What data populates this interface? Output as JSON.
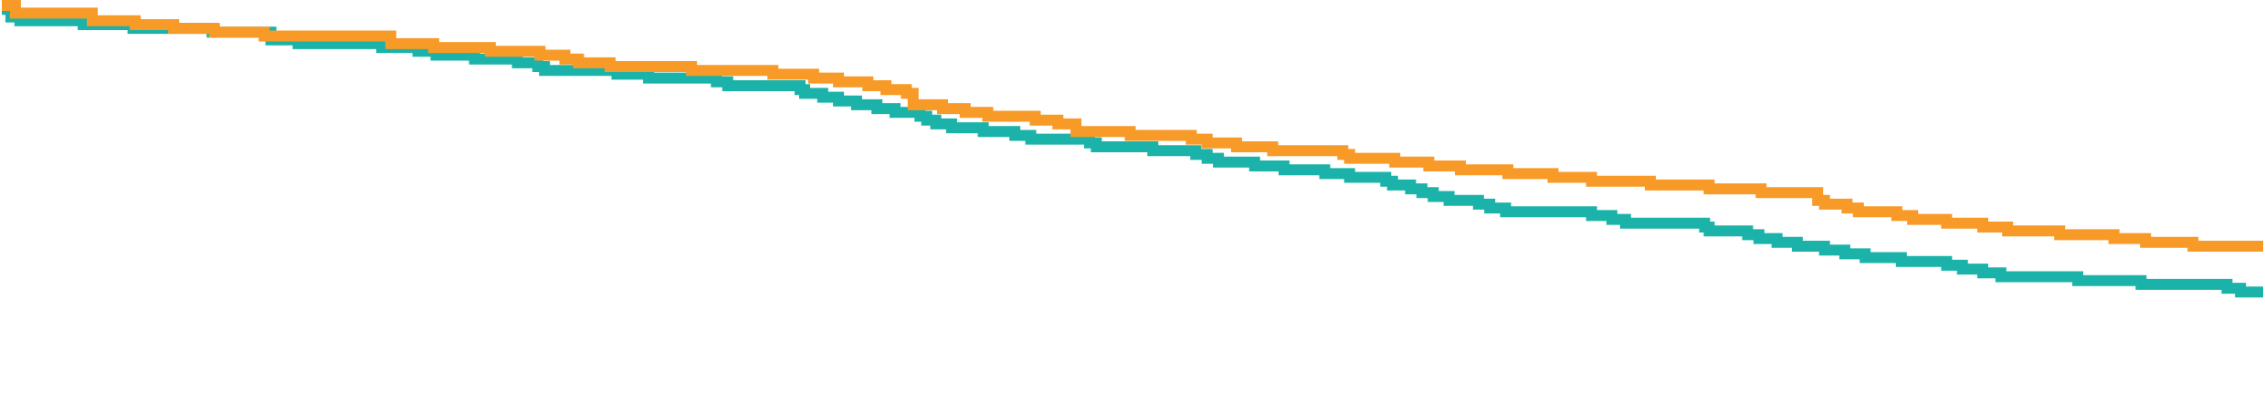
{
  "chart_data": {
    "type": "line",
    "step": true,
    "title": "",
    "xlabel": "",
    "ylabel": "",
    "xlim": [
      0,
      100
    ],
    "ylim": [
      0,
      100
    ],
    "grid": false,
    "legend": "none",
    "series": [
      {
        "color": "#1bb3a9",
        "values": [
          [
            0,
            99
          ],
          [
            0.4,
            97
          ],
          [
            0.8,
            96
          ],
          [
            1.8,
            96
          ],
          [
            3.6,
            95
          ],
          [
            4.1,
            95
          ],
          [
            5.8,
            94
          ],
          [
            7.4,
            94
          ],
          [
            9.3,
            93
          ],
          [
            11.2,
            93
          ],
          [
            11.9,
            91
          ],
          [
            13.1,
            90
          ],
          [
            16.8,
            89
          ],
          [
            18.4,
            88
          ],
          [
            19.2,
            87
          ],
          [
            20.9,
            86
          ],
          [
            22.8,
            85
          ],
          [
            23.7,
            84
          ],
          [
            24.0,
            83
          ],
          [
            25.7,
            83
          ],
          [
            27.2,
            82
          ],
          [
            27.9,
            82
          ],
          [
            28.6,
            81
          ],
          [
            30.3,
            81
          ],
          [
            31.6,
            80
          ],
          [
            32.1,
            79
          ],
          [
            33.6,
            79
          ],
          [
            35.3,
            78
          ],
          [
            35.5,
            77
          ],
          [
            36.3,
            76
          ],
          [
            37.0,
            75
          ],
          [
            37.8,
            74
          ],
          [
            38.7,
            73
          ],
          [
            39.5,
            72
          ],
          [
            40.6,
            71
          ],
          [
            40.9,
            70
          ],
          [
            41.3,
            69
          ],
          [
            42.0,
            68
          ],
          [
            43.4,
            67
          ],
          [
            44.8,
            66
          ],
          [
            45.5,
            65
          ],
          [
            48.1,
            64
          ],
          [
            48.4,
            63
          ],
          [
            50.9,
            62
          ],
          [
            52.8,
            61
          ],
          [
            53.3,
            60
          ],
          [
            53.8,
            59
          ],
          [
            55.4,
            58
          ],
          [
            56.7,
            57
          ],
          [
            58.5,
            56
          ],
          [
            59.6,
            55
          ],
          [
            61.2,
            54
          ],
          [
            61.5,
            53
          ],
          [
            62.3,
            52
          ],
          [
            62.8,
            51
          ],
          [
            63.3,
            50
          ],
          [
            64.0,
            49
          ],
          [
            65.3,
            48
          ],
          [
            65.8,
            47
          ],
          [
            66.5,
            46
          ],
          [
            70.3,
            45
          ],
          [
            71.2,
            44
          ],
          [
            71.8,
            43
          ],
          [
            75.3,
            42
          ],
          [
            75.5,
            41
          ],
          [
            77.2,
            40
          ],
          [
            77.7,
            39
          ],
          [
            78.5,
            38
          ],
          [
            79.4,
            37
          ],
          [
            80.6,
            36
          ],
          [
            81.5,
            35
          ],
          [
            82.4,
            34
          ],
          [
            84.0,
            33
          ],
          [
            86.0,
            32
          ],
          [
            86.7,
            31
          ],
          [
            87.6,
            30
          ],
          [
            88.4,
            29
          ],
          [
            91.8,
            28
          ],
          [
            94.6,
            27
          ],
          [
            98.4,
            26
          ],
          [
            99.0,
            25
          ],
          [
            100,
            25
          ]
        ]
      },
      {
        "color": "#f79a27",
        "values": [
          [
            0,
            100
          ],
          [
            0.6,
            98
          ],
          [
            4.0,
            96
          ],
          [
            5.9,
            95
          ],
          [
            7.6,
            94
          ],
          [
            9.4,
            93
          ],
          [
            11.6,
            92
          ],
          [
            17.2,
            90
          ],
          [
            19.1,
            89
          ],
          [
            21.6,
            88
          ],
          [
            23.8,
            87
          ],
          [
            24.9,
            86
          ],
          [
            25.5,
            85
          ],
          [
            26.9,
            84
          ],
          [
            30.5,
            83
          ],
          [
            34.1,
            82
          ],
          [
            35.9,
            81
          ],
          [
            37.0,
            80
          ],
          [
            38.3,
            79
          ],
          [
            39.1,
            78
          ],
          [
            40.0,
            77
          ],
          [
            40.3,
            74
          ],
          [
            41.6,
            73
          ],
          [
            42.6,
            72
          ],
          [
            43.6,
            71
          ],
          [
            45.7,
            70
          ],
          [
            46.7,
            69
          ],
          [
            47.5,
            67
          ],
          [
            49.9,
            66
          ],
          [
            52.6,
            65
          ],
          [
            53.3,
            64
          ],
          [
            54.6,
            63
          ],
          [
            56.2,
            62
          ],
          [
            59.3,
            61
          ],
          [
            59.6,
            60
          ],
          [
            61.6,
            59
          ],
          [
            63.1,
            58
          ],
          [
            64.5,
            57
          ],
          [
            66.6,
            56
          ],
          [
            68.6,
            55
          ],
          [
            70.3,
            54
          ],
          [
            72.9,
            53
          ],
          [
            75.5,
            52
          ],
          [
            77.8,
            51
          ],
          [
            80.3,
            49
          ],
          [
            80.6,
            48
          ],
          [
            81.6,
            47
          ],
          [
            82.1,
            46
          ],
          [
            83.8,
            45
          ],
          [
            84.5,
            44
          ],
          [
            86.0,
            43
          ],
          [
            87.6,
            42
          ],
          [
            88.7,
            41
          ],
          [
            91.0,
            40
          ],
          [
            93.4,
            39
          ],
          [
            94.8,
            38
          ],
          [
            96.9,
            37
          ],
          [
            100,
            37
          ]
        ]
      }
    ]
  }
}
